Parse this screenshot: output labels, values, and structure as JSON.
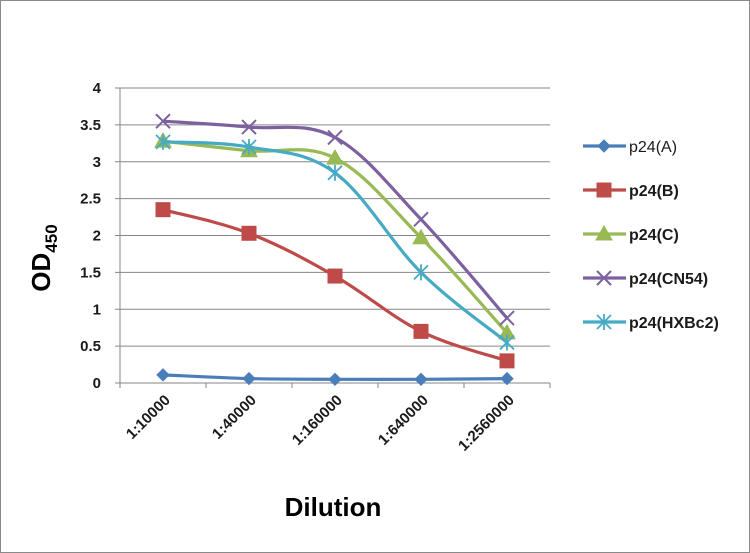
{
  "chart_data": {
    "type": "line",
    "title": "",
    "xlabel": "Dilution",
    "ylabel_main": "OD",
    "ylabel_sub": "450",
    "categories": [
      "1:10000",
      "1:40000",
      "1:160000",
      "1:640000",
      "1:2560000"
    ],
    "ylim": [
      0,
      4
    ],
    "yticks": [
      "0",
      "0.5",
      "1",
      "1.5",
      "2",
      "2.5",
      "3",
      "3.5",
      "4"
    ],
    "grid": true,
    "legend_position": "right",
    "smooth": true,
    "series": [
      {
        "name": "p24(A)",
        "values": [
          0.11,
          0.06,
          0.05,
          0.05,
          0.06
        ],
        "color": "#4a7ebb",
        "marker": "diamond",
        "legend_bold": false
      },
      {
        "name": "p24(B)",
        "values": [
          2.35,
          2.03,
          1.45,
          0.7,
          0.3
        ],
        "color": "#be4b48",
        "marker": "square",
        "legend_bold": true
      },
      {
        "name": "p24(C)",
        "values": [
          3.28,
          3.15,
          3.05,
          1.97,
          0.68
        ],
        "color": "#98b954",
        "marker": "triangle",
        "legend_bold": true
      },
      {
        "name": "p24(CN54)",
        "values": [
          3.55,
          3.47,
          3.33,
          2.22,
          0.88
        ],
        "color": "#7d60a0",
        "marker": "x",
        "legend_bold": true
      },
      {
        "name": "p24(HXBc2)",
        "values": [
          3.27,
          3.2,
          2.85,
          1.5,
          0.55
        ],
        "color": "#46aac5",
        "marker": "star",
        "legend_bold": true
      }
    ]
  }
}
